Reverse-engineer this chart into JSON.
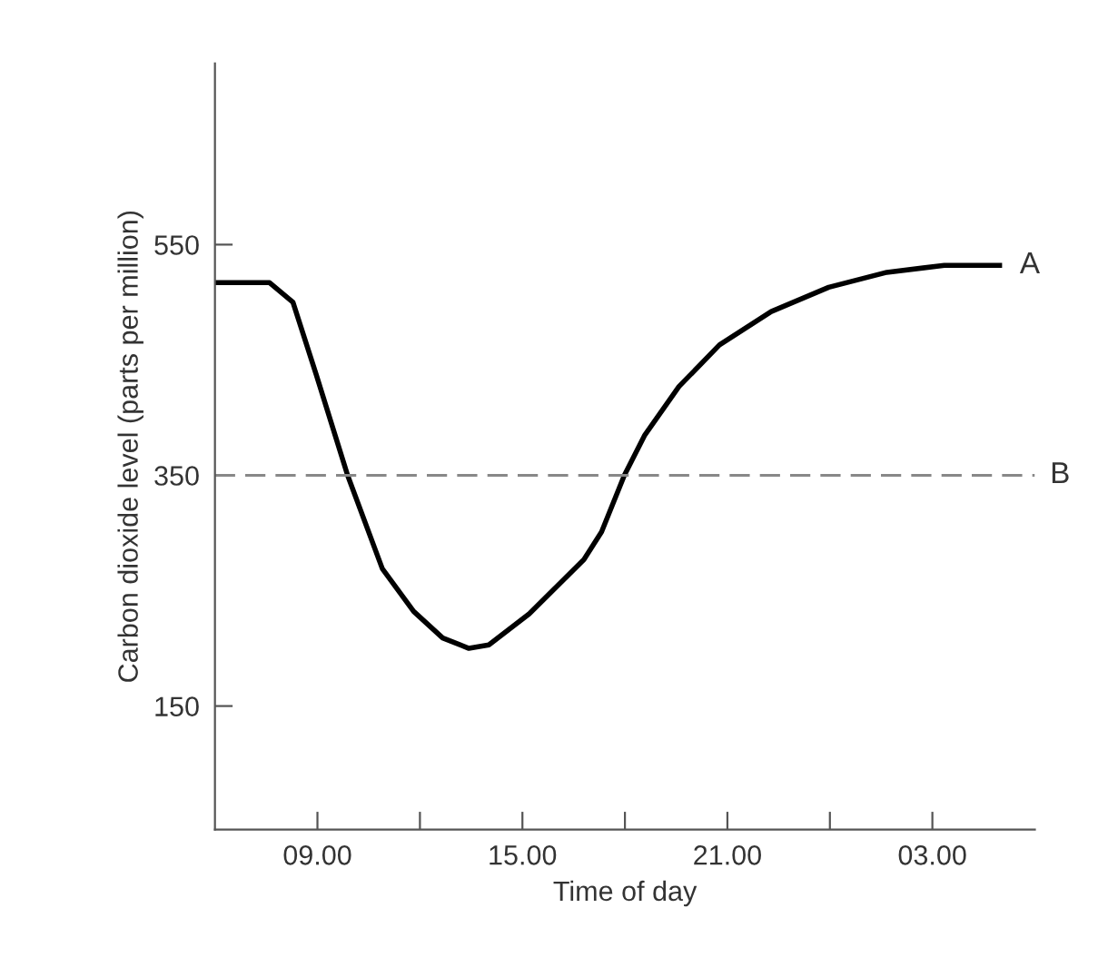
{
  "chart_data": {
    "type": "line",
    "xlabel": "Time of day",
    "ylabel": "Carbon dioxide level (parts per million)",
    "series": [
      {
        "color": "#000000",
        "x": [
          "2000-01-01T06:00",
          "2000-01-01T07:36",
          "2000-01-01T08:17",
          "2000-01-01T08:58",
          "2000-01-01T09:53",
          "2000-01-01T10:54",
          "2000-01-01T11:49",
          "2000-01-01T12:40",
          "2000-01-01T13:26",
          "2000-01-01T14:01",
          "2000-01-01T15:12",
          "2000-01-01T16:48",
          "2000-01-01T17:19",
          "2000-01-01T17:59",
          "2000-01-01T18:35",
          "2000-01-01T19:35",
          "2000-01-01T20:46",
          "2000-01-01T22:17",
          "2000-01-01T23:58",
          "2000-01-02T01:40",
          "2000-01-02T03:21",
          "2000-01-02T04:58"
        ],
        "values": [
          517,
          517,
          500,
          437,
          350,
          269,
          232,
          209,
          200,
          203,
          230,
          277,
          301,
          350,
          385,
          427,
          463,
          492,
          513,
          526,
          532,
          532
        ]
      }
    ],
    "annotations": [
      {
        "text": "A",
        "x": "2000-01-02T04:58",
        "y": 532
      }
    ],
    "ref_lines": [
      {
        "axis": "y",
        "value": 350,
        "label": "B",
        "color": "#888888",
        "line_style": "dashed"
      }
    ],
    "xlim": [
      "2000-01-01T06:00",
      "2000-01-02T06:00"
    ],
    "ylim": [
      43,
      707
    ],
    "xticks": [
      {
        "value": "2000-01-01T09:00",
        "label": "09.00"
      },
      {
        "value": "2000-01-01T12:00",
        "label": null
      },
      {
        "value": "2000-01-01T15:00",
        "label": "15.00"
      },
      {
        "value": "2000-01-01T18:00",
        "label": null
      },
      {
        "value": "2000-01-01T21:00",
        "label": "21.00"
      },
      {
        "value": "2000-01-02T00:00",
        "label": null
      },
      {
        "value": "2000-01-02T03:00",
        "label": "03.00"
      }
    ],
    "yticks": [
      150,
      350,
      550
    ],
    "grid": false,
    "legend": false,
    "marker": "none",
    "line_style": "solid"
  }
}
